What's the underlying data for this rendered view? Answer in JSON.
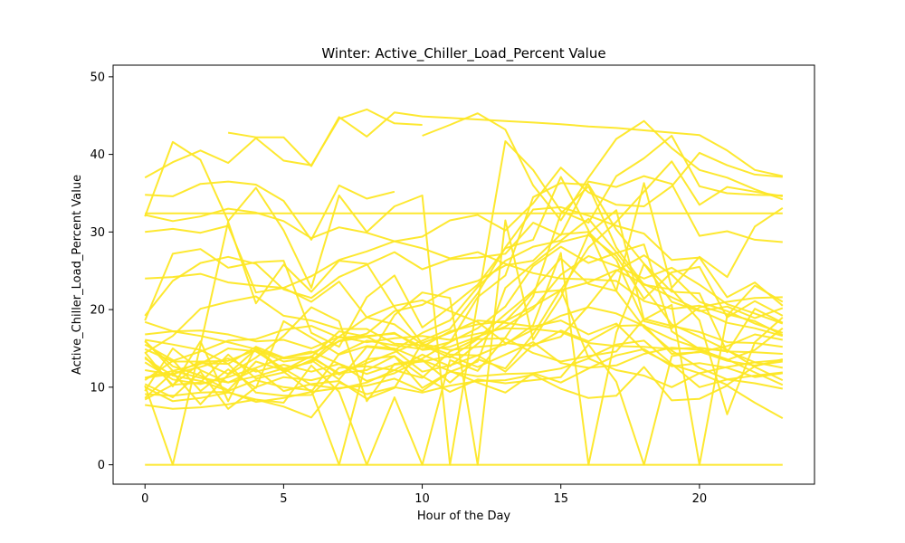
{
  "chart_data": {
    "type": "line",
    "title": "Winter: Active_Chiller_Load_Percent Value",
    "xlabel": "Hour of the Day",
    "ylabel": "Active_Chiller_Load_Percent Value",
    "xlim": [
      -1.15,
      24.15
    ],
    "ylim": [
      -2.5,
      51.5
    ],
    "x_ticks": [
      0,
      5,
      10,
      15,
      20
    ],
    "y_ticks": [
      0,
      10,
      20,
      30,
      40,
      50
    ],
    "grid": false,
    "legend": "none",
    "line_color": "#fde725",
    "x": [
      0,
      1,
      2,
      3,
      4,
      5,
      6,
      7,
      8,
      9,
      10,
      11,
      12,
      13,
      14,
      15,
      16,
      17,
      18,
      19,
      20,
      21,
      22,
      23
    ],
    "series": [
      {
        "values": [
          0,
          0,
          0,
          0,
          0,
          0,
          0,
          0,
          0,
          0,
          0,
          0,
          0,
          0,
          0,
          0,
          0,
          0,
          0,
          0,
          0,
          0,
          0,
          0
        ]
      },
      {
        "values": [
          32.4,
          32.4,
          32.4,
          32.4,
          32.4,
          32.4,
          32.4,
          32.4,
          32.4,
          32.4,
          32.4,
          32.4,
          32.4,
          32.4,
          32.4,
          32.4,
          32.4,
          32.4,
          32.4,
          32.4,
          32.4,
          32.4,
          32.4,
          32.4
        ]
      },
      {
        "values": [
          null,
          null,
          null,
          42.8,
          42.2,
          42.2,
          38.5,
          44.8,
          42.3,
          45.4,
          44.9,
          44.7,
          44.5,
          44.3,
          44.1,
          43.9,
          43.6,
          43.4,
          43.1,
          42.8,
          42.5,
          40.5,
          38.0,
          37.2
        ]
      },
      {
        "values": [
          37.0,
          39.0,
          40.5,
          38.9,
          42.1,
          39.2,
          38.6,
          44.6,
          45.8,
          44.0,
          43.8,
          null,
          null,
          null,
          null,
          null,
          null,
          null,
          null,
          null,
          null,
          null,
          null,
          null
        ]
      },
      {
        "values": [
          34.8,
          34.6,
          36.2,
          36.5,
          36.1,
          34.0,
          29.0,
          36.0,
          34.3,
          35.2,
          null,
          null,
          null,
          null,
          null,
          null,
          null,
          null,
          null,
          null,
          null,
          null,
          null,
          null
        ]
      },
      {
        "values": [
          null,
          null,
          null,
          null,
          null,
          null,
          null,
          null,
          null,
          null,
          42.4,
          43.8,
          45.3,
          43.2,
          36.0,
          31.5,
          37.0,
          42.0,
          44.3,
          40.8,
          38.0,
          37.0,
          35.5,
          34.2
        ]
      },
      {
        "values": [
          32.0,
          41.6,
          39.3,
          31.4,
          35.7,
          30.2,
          22.8,
          34.7,
          30.0,
          33.3,
          34.7,
          0,
          21.0,
          41.7,
          38.0,
          32.7,
          31.2,
          37.2,
          39.5,
          42.4,
          35.9,
          35.0,
          34.8,
          34.7
        ]
      },
      {
        "values": [
          30.0,
          30.4,
          29.9,
          30.8,
          22.2,
          22.8,
          24.3,
          26.4,
          27.5,
          28.8,
          29.4,
          31.5,
          32.2,
          30.2,
          33.7,
          38.3,
          35.1,
          33.5,
          33.3,
          35.9,
          40.2,
          38.6,
          37.4,
          37.1
        ]
      },
      {
        "values": [
          19.2,
          23.7,
          26.0,
          26.8,
          25.9,
          22.6,
          21.5,
          24.2,
          25.8,
          27.4,
          25.2,
          26.5,
          26.7,
          27.2,
          31.2,
          29.6,
          36.5,
          35.8,
          37.2,
          36.2,
          29.5,
          30.1,
          29.0,
          28.7
        ]
      },
      {
        "values": [
          18.6,
          27.2,
          27.8,
          25.4,
          26.1,
          26.3,
          17.0,
          15.2,
          21.6,
          24.4,
          17.7,
          20.3,
          23.2,
          27.9,
          29.0,
          37.1,
          30.2,
          22.4,
          36.3,
          22.8,
          26.8,
          24.2,
          30.7,
          33.1
        ]
      },
      {
        "values": [
          24.0,
          24.2,
          24.6,
          23.5,
          23.1,
          22.8,
          21.0,
          23.6,
          19.0,
          20.5,
          21.2,
          19.8,
          18.4,
          15.7,
          15.3,
          17.3,
          15.9,
          17.9,
          18.0,
          14.3,
          14.5,
          15.3,
          16.8,
          16.1
        ]
      },
      {
        "values": [
          16.0,
          12.1,
          13.0,
          15.0,
          14.6,
          12.4,
          13.2,
          16.0,
          16.9,
          19.8,
          20.6,
          22.7,
          23.7,
          25.7,
          26.3,
          29.7,
          30.0,
          26.4,
          18.5,
          17.6,
          20.3,
          21.0,
          21.5,
          21.6
        ]
      },
      {
        "values": [
          14.5,
          10.1,
          15.9,
          8.2,
          15.2,
          12.0,
          13.4,
          16.5,
          19.0,
          18.1,
          15.5,
          14.2,
          14.1,
          12.0,
          15.5,
          16.5,
          20.5,
          25.0,
          27.0,
          24.5,
          21.0,
          19.8,
          18.2,
          17.0
        ]
      },
      {
        "values": [
          16.8,
          17.2,
          17.3,
          16.8,
          15.9,
          16.1,
          15.0,
          16.5,
          15.8,
          16.3,
          16.6,
          16.1,
          16.9,
          17.6,
          17.5,
          17.1,
          15.7,
          15.3,
          15.2,
          14.9,
          15.1,
          14.6,
          14.5,
          14.3
        ]
      },
      {
        "values": [
          12.2,
          11.6,
          13.3,
          11.7,
          14.9,
          13.3,
          13.8,
          11.8,
          13.1,
          14.5,
          16.0,
          17.5,
          22.1,
          28.0,
          32.9,
          33.2,
          32.1,
          30.8,
          29.8,
          26.4,
          26.7,
          21.6,
          23.5,
          20.5
        ]
      },
      {
        "values": [
          14.9,
          13.3,
          13.3,
          13.4,
          14.8,
          12.0,
          9.4,
          14.3,
          16.0,
          15.4,
          14.9,
          15.8,
          21.6,
          24.4,
          34.5,
          36.3,
          36.1,
          30.3,
          25.9,
          21.0,
          19.8,
          20.4,
          18.9,
          20.2
        ]
      },
      {
        "values": [
          10.4,
          8.7,
          12.0,
          7.2,
          10.0,
          11.3,
          10.9,
          11.8,
          12.2,
          14.0,
          9.9,
          12.0,
          13.3,
          22.8,
          25.9,
          28.7,
          29.6,
          26.9,
          21.4,
          24.8,
          25.5,
          19.0,
          21.1,
          19.2
        ]
      },
      {
        "values": [
          15.5,
          13.5,
          9.5,
          12.3,
          9.9,
          18.5,
          16.4,
          14.2,
          15.3,
          15.0,
          13.5,
          12.1,
          10.6,
          9.3,
          11.8,
          12.4,
          13.7,
          12.2,
          11.5,
          10.0,
          11.8,
          12.6,
          13.2,
          12.5
        ]
      },
      {
        "values": [
          18.4,
          17.2,
          16.6,
          15.8,
          14.9,
          13.7,
          13.9,
          17.2,
          16.5,
          14.8,
          17.0,
          18.6,
          22.9,
          26.3,
          28.1,
          28.9,
          31.7,
          27.4,
          22.9,
          18.1,
          16.5,
          14.8,
          12.6,
          10.9
        ]
      },
      {
        "values": [
          13.9,
          10.3,
          13.1,
          13.0,
          9.3,
          8.9,
          9.0,
          12.5,
          12.7,
          12.2,
          11.2,
          14.6,
          16.3,
          19.4,
          22.4,
          26.6,
          23.3,
          22.4,
          17.7,
          14.7,
          12.5,
          11.0,
          10.5,
          9.8
        ]
      },
      {
        "values": [
          9.5,
          15.0,
          12.2,
          10.6,
          12.3,
          9.5,
          10.4,
          10.8,
          8.5,
          9.9,
          15.7,
          17.0,
          18.6,
          18.3,
          17.8,
          18.6,
          16.8,
          18.2,
          14.7,
          12.9,
          11.8,
          10.3,
          12.7,
          13.6
        ]
      },
      {
        "values": [
          8.4,
          10.3,
          10.6,
          14.2,
          11.1,
          11.9,
          13.5,
          11.0,
          15.2,
          14.8,
          12.0,
          12.8,
          14.1,
          15.6,
          17.4,
          19.2,
          20.3,
          19.5,
          17.9,
          16.2,
          15.0,
          14.7,
          13.2,
          13.5
        ]
      },
      {
        "values": [
          11.2,
          12.1,
          11.2,
          10.6,
          11.4,
          12.4,
          10.3,
          9.8,
          10.6,
          12.2,
          14.2,
          12.7,
          15.6,
          18.5,
          22.2,
          22.5,
          23.5,
          25.1,
          23.3,
          21.6,
          19.9,
          18.3,
          17.6,
          16.6
        ]
      },
      {
        "values": [
          9.1,
          8.9,
          9.3,
          9.4,
          8.1,
          8.6,
          9.4,
          9.9,
          10.2,
          11.1,
          9.5,
          12.0,
          11.4,
          11.7,
          11.8,
          10.6,
          12.4,
          14.1,
          14.9,
          12.7,
          13.1,
          12.5,
          11.3,
          11.8
        ]
      },
      {
        "values": [
          8.6,
          11.9,
          7.8,
          11.6,
          13.8,
          16.6,
          20.3,
          18.5,
          8.2,
          13.0,
          13.5,
          10.6,
          13.6,
          12.4,
          16.8,
          22.6,
          13.8,
          15.5,
          16.0,
          13.0,
          10.0,
          11.0,
          11.5,
          11.9
        ]
      },
      {
        "values": [
          10.9,
          13.4,
          14.6,
          16.0,
          16.2,
          17.4,
          17.9,
          16.4,
          16.6,
          16.9,
          15.2,
          17.2,
          18.1,
          18.5,
          20.4,
          22.5,
          28.0,
          31.3,
          35.2,
          39.1,
          33.5,
          35.8,
          35.2,
          34.6
        ]
      },
      {
        "values": [
          7.7,
          7.2,
          7.4,
          7.8,
          8.4,
          7.5,
          6.1,
          10.6,
          9.1,
          10.0,
          9.3,
          10.2,
          10.8,
          10.9,
          11.6,
          9.8,
          8.6,
          8.9,
          12.6,
          8.3,
          8.5,
          10.2,
          8.0,
          6.0
        ]
      },
      {
        "values": [
          16.1,
          15.5,
          14.8,
          13.0,
          15.2,
          13.8,
          14.4,
          15.9,
          16.5,
          17.0,
          14.8,
          15.2,
          16.5,
          17.8,
          20.1,
          24.5,
          26.9,
          25.6,
          24.0,
          25.4,
          23.2,
          20.7,
          19.5,
          18.2
        ]
      },
      {
        "values": [
          13.2,
          11.0,
          10.4,
          11.3,
          12.5,
          13.8,
          14.6,
          13.0,
          11.7,
          12.9,
          13.3,
          14.0,
          12.6,
          14.2,
          15.8,
          13.1,
          12.5,
          12.8,
          14.3,
          15.1,
          14.8,
          13.6,
          11.9,
          10.3
        ]
      },
      {
        "values": [
          14.4,
          16.6,
          20.1,
          21.0,
          21.7,
          19.2,
          18.6,
          17.5,
          17.5,
          15.6,
          15.4,
          13.8,
          16.2,
          16.3,
          14.4,
          13.3,
          14.0,
          14.6,
          18.8,
          17.9,
          17.1,
          15.8,
          15.7,
          15.2
        ]
      },
      {
        "values": [
          32.2,
          31.4,
          32.0,
          33.0,
          32.5,
          31.4,
          29.2,
          30.6,
          29.9,
          28.8,
          27.9,
          26.6,
          27.4,
          25.9,
          24.7,
          24.0,
          23.9,
          23.7,
          21.1,
          20.1,
          20.5,
          19.4,
          18.5,
          16.7
        ]
      },
      {
        "values": [
          10.2,
          0,
          15.4,
          31.3,
          20.8,
          25.8,
          22.3,
          26.3,
          25.9,
          20.3,
          15.6,
          14.8,
          15.2,
          15.5,
          18.0,
          27.3,
          0,
          17.0,
          25.9,
          22.3,
          22.1,
          14.5,
          20.1,
          18.3
        ]
      },
      {
        "values": [
          13.7,
          11.5,
          10.8,
          9.5,
          10.9,
          10.0,
          9.6,
          0,
          13.6,
          14.0,
          11.4,
          9.4,
          11.0,
          10.5,
          10.9,
          11.3,
          15.5,
          10.7,
          0,
          14.0,
          14.6,
          13.4,
          12.8,
          13.3
        ]
      },
      {
        "values": [
          10.0,
          8.2,
          8.6,
          9.3,
          8.4,
          8.0,
          12.8,
          9.4,
          0,
          8.7,
          0,
          13.5,
          12.1,
          16.4,
          21.7,
          32.4,
          35.9,
          28.0,
          23.2,
          22.6,
          18.6,
          6.5,
          15.8,
          19.0
        ]
      },
      {
        "values": [
          15.9,
          12.7,
          11.5,
          9.6,
          13.3,
          12.2,
          14.0,
          11.6,
          13.5,
          19.3,
          22.2,
          21.5,
          0,
          31.5,
          16.1,
          21.6,
          29.8,
          32.8,
          18.7,
          20.6,
          0,
          19.2,
          23.1,
          21.0
        ]
      },
      {
        "values": [
          11.2,
          11.7,
          12.6,
          13.7,
          12.0,
          12.9,
          12.0,
          13.0,
          10.8,
          11.8,
          13.7,
          15.8,
          17.6,
          20.4,
          25.6,
          28.1,
          26.0,
          27.3,
          28.4,
          17.2,
          14.9,
          13.5,
          14.8,
          17.6
        ]
      }
    ]
  }
}
